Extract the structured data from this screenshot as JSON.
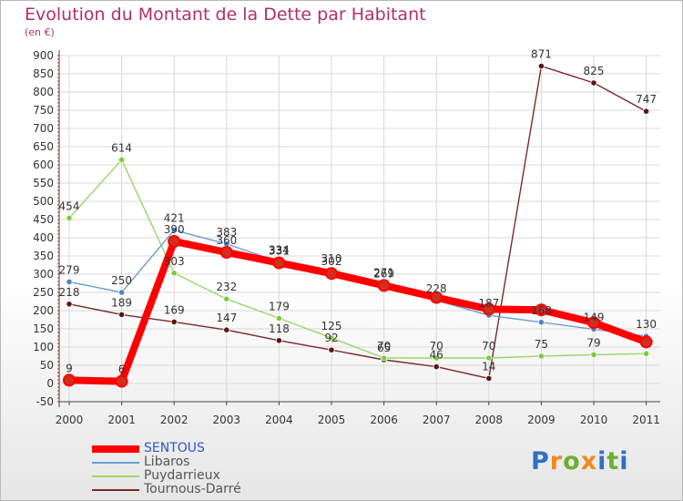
{
  "title": "Evolution du Montant de la Dette par Habitant",
  "unit": "(en €)",
  "logo_text": "Proxiti",
  "chart_data": {
    "type": "line",
    "x": [
      "2000",
      "2001",
      "2002",
      "2003",
      "2004",
      "2005",
      "2006",
      "2007",
      "2008",
      "2009",
      "2010",
      "2011"
    ],
    "ylim": [
      -50,
      900
    ],
    "yticks": [
      -50,
      0,
      50,
      100,
      150,
      200,
      250,
      300,
      350,
      400,
      450,
      500,
      550,
      600,
      650,
      700,
      750,
      800,
      850,
      900
    ],
    "grid": true,
    "legend_position": "bottom-left",
    "series": [
      {
        "name": "SENTOUS",
        "color": "#ff0000",
        "marker": "#d03020",
        "values": [
          9,
          6,
          390,
          360,
          331,
          302,
          269,
          236,
          204,
          202,
          167,
          114
        ],
        "labels": [
          "9",
          "6",
          "390",
          "360",
          "331",
          "302",
          "269",
          "",
          "",
          "",
          "",
          ""
        ]
      },
      {
        "name": "Libaros",
        "color": "#6a9fd4",
        "marker": "#4a86c8",
        "values": [
          279,
          250,
          421,
          383,
          334,
          310,
          271,
          228,
          187,
          168,
          149,
          130
        ],
        "labels": [
          "279",
          "250",
          "421",
          "383",
          "334",
          "310",
          "271",
          "228",
          "187",
          "168",
          "149",
          "130"
        ]
      },
      {
        "name": "Puydarrieux",
        "color": "#99d66a",
        "marker": "#7ccc3c",
        "values": [
          454,
          614,
          303,
          232,
          179,
          125,
          70,
          70,
          70,
          75,
          79,
          82
        ],
        "labels": [
          "454",
          "614",
          "303",
          "232",
          "179",
          "125",
          "70",
          "70",
          "70",
          "75",
          "79",
          ""
        ]
      },
      {
        "name": "Tournous-Darré",
        "color": "#7a2a2a",
        "marker": "#5a1616",
        "values": [
          218,
          189,
          169,
          147,
          118,
          92,
          65,
          46,
          14,
          871,
          825,
          747
        ],
        "labels": [
          "218",
          "189",
          "169",
          "147",
          "118",
          "92",
          "65",
          "46",
          "14",
          "871",
          "825",
          "747"
        ]
      }
    ]
  }
}
